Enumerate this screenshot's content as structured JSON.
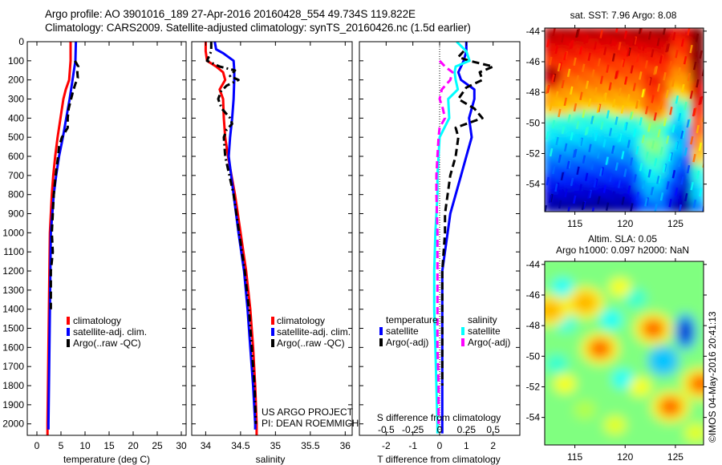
{
  "header": {
    "line1": "Argo profile: AO 3901016_189 27-Apr-2016 20160428_554 49.734S 119.822E",
    "line2": "Climatology: CARS2009. Satellite-adjusted climatology: synTS_20160426.nc (1.5d earlier)"
  },
  "colors": {
    "climatology": "#ff0000",
    "satellite": "#0000ff",
    "argo": "#000000",
    "salinity_satellite": "#00ffff",
    "salinity_argo": "#ff00ff"
  },
  "chart_data": [
    {
      "id": "temperature",
      "type": "line",
      "xlabel": "temperature (deg C)",
      "ylabel": "",
      "xlim": [
        -2,
        31
      ],
      "ylim": [
        2060,
        0
      ],
      "xticks": [
        0,
        5,
        10,
        15,
        20,
        25,
        30
      ],
      "yticks": [
        0,
        100,
        200,
        300,
        400,
        500,
        600,
        700,
        800,
        900,
        1000,
        1100,
        1200,
        1300,
        1400,
        1500,
        1600,
        1700,
        1800,
        1900,
        2000
      ],
      "legend": [
        "climatology",
        "satellite-adj. clim.",
        "Argo(..raw -QC)"
      ],
      "legend_placement": "center",
      "series": [
        {
          "name": "climatology",
          "color": "#ff0000",
          "style": "solid",
          "depth": [
            0,
            100,
            200,
            250,
            300,
            400,
            500,
            600,
            700,
            800,
            900,
            1000,
            1200,
            1400,
            1600,
            1800,
            2000,
            2060
          ],
          "values": [
            7.0,
            7.0,
            6.7,
            6.0,
            5.5,
            4.9,
            4.3,
            3.8,
            3.4,
            3.1,
            2.9,
            2.7,
            2.6,
            2.5,
            2.4,
            2.3,
            2.2,
            2.2
          ]
        },
        {
          "name": "satellite-adj. clim.",
          "color": "#0000ff",
          "style": "solid",
          "depth": [
            0,
            100,
            200,
            300,
            400,
            500,
            600,
            700,
            800,
            900,
            1000,
            1200,
            1400,
            1600,
            1800,
            2000,
            2030
          ],
          "values": [
            8.1,
            8.0,
            7.4,
            6.8,
            6.1,
            5.4,
            4.6,
            4.0,
            3.5,
            3.2,
            2.9,
            2.8,
            2.7,
            2.6,
            2.5,
            2.4,
            2.4
          ]
        },
        {
          "name": "Argo(..raw -QC)",
          "color": "#000000",
          "style": "dash",
          "depth": [
            100,
            130,
            160,
            190,
            220,
            260,
            300,
            350,
            400,
            450,
            500,
            550,
            600,
            700,
            800,
            900,
            1000,
            1100,
            1200,
            1300,
            1400
          ],
          "values": [
            7.9,
            8.6,
            8.4,
            8.5,
            8.0,
            7.5,
            7.1,
            6.6,
            6.4,
            6.4,
            5.2,
            4.6,
            4.4,
            3.9,
            3.5,
            3.3,
            3.1,
            3.3,
            2.9,
            2.9,
            2.9
          ]
        }
      ]
    },
    {
      "id": "salinity",
      "type": "line",
      "xlabel": "salinity",
      "ylabel": "",
      "xlim": [
        33.8,
        36.1
      ],
      "ylim": [
        2060,
        0
      ],
      "xticks": [
        34,
        34.5,
        35,
        35.5,
        36
      ],
      "xticklabels": [
        "34",
        "34.5",
        "35",
        "35.5",
        "36"
      ],
      "legend": [
        "climatology",
        "satellite-adj. clim.",
        "Argo(..raw -QC)"
      ],
      "legend_placement": "center-right",
      "annotation": [
        "US ARGO PROJECT",
        "PI: DEAN ROEMMICH"
      ],
      "series": [
        {
          "name": "climatology",
          "color": "#ff0000",
          "style": "solid",
          "depth": [
            0,
            50,
            100,
            130,
            160,
            200,
            250,
            300,
            400,
            500,
            600,
            800,
            1000,
            1200,
            1400,
            1600,
            1800,
            2000,
            2060
          ],
          "values": [
            34.0,
            34.0,
            34.02,
            34.15,
            34.25,
            34.28,
            34.2,
            34.25,
            34.26,
            34.28,
            34.32,
            34.42,
            34.5,
            34.58,
            34.64,
            34.68,
            34.71,
            34.73,
            34.73
          ]
        },
        {
          "name": "satellite-adj. clim.",
          "color": "#0000ff",
          "style": "solid",
          "depth": [
            0,
            40,
            60,
            100,
            150,
            200,
            300,
            400,
            500,
            600,
            800,
            1000,
            1200,
            1400,
            1600,
            1800,
            2000,
            2030
          ],
          "values": [
            34.13,
            34.15,
            34.25,
            34.4,
            34.41,
            34.41,
            34.4,
            34.38,
            34.35,
            34.33,
            34.4,
            34.47,
            34.55,
            34.6,
            34.64,
            34.68,
            34.71,
            34.71
          ]
        },
        {
          "name": "Argo(..raw -QC)",
          "color": "#000000",
          "style": "dashdot",
          "depth": [
            0,
            50,
            100,
            130,
            150,
            180,
            200,
            230,
            260,
            300,
            350,
            400,
            430,
            460,
            500,
            600,
            800,
            1000,
            1200,
            1400,
            1600,
            1800,
            2000
          ],
          "values": [
            34.08,
            34.08,
            34.02,
            34.2,
            34.42,
            34.35,
            34.47,
            34.3,
            34.22,
            34.18,
            34.23,
            34.35,
            34.38,
            34.3,
            34.26,
            34.28,
            34.4,
            34.48,
            34.56,
            34.62,
            34.66,
            34.7,
            34.72
          ]
        }
      ]
    },
    {
      "id": "difference",
      "type": "line",
      "xlabel": "T difference from climatology",
      "xlabel_secondary": "S difference from climatology",
      "xlim": [
        -3,
        3
      ],
      "xlim_secondary": [
        -0.75,
        0.75
      ],
      "ylim": [
        2060,
        0
      ],
      "xticks": [
        -2,
        -1,
        0,
        1,
        2
      ],
      "xticklabels_secondary": [
        "-0.5",
        "-0.25",
        "0",
        "0.25",
        "0.5"
      ],
      "zero_line": "dotted",
      "legend_groups": [
        {
          "title": "temperature",
          "items": [
            "satellite",
            "Argo(-adj)"
          ]
        },
        {
          "title": "salinity",
          "items": [
            "satellite",
            "Argo(-adj)"
          ]
        }
      ],
      "legend_placement": "bottom",
      "series": [
        {
          "name": "temperature satellite",
          "color": "#0000ff",
          "style": "solid",
          "depth": [
            0,
            50,
            100,
            130,
            160,
            200,
            250,
            300,
            400,
            500,
            600,
            700,
            800,
            900,
            1000,
            1200,
            1400,
            1600,
            1800,
            2000,
            2050
          ],
          "values": [
            1.0,
            1.0,
            0.9,
            0.8,
            0.7,
            0.8,
            1.3,
            1.3,
            1.1,
            1.2,
            1.0,
            0.8,
            0.6,
            0.4,
            0.3,
            0.1,
            0.1,
            0.1,
            0.1,
            0.1,
            0.1
          ]
        },
        {
          "name": "temperature Argo(-adj)",
          "color": "#000000",
          "style": "dash",
          "depth": [
            50,
            80,
            100,
            130,
            160,
            200,
            240,
            300,
            350,
            400,
            450,
            500,
            600,
            700,
            800,
            900,
            1000,
            1200,
            1400,
            1600,
            1800
          ],
          "values": [
            0.9,
            0.7,
            1.1,
            2.0,
            1.5,
            1.6,
            1.0,
            0.7,
            1.3,
            1.6,
            0.6,
            0.7,
            0.6,
            0.4,
            0.3,
            0.2,
            0.2,
            0.1,
            0.1,
            0.1,
            0.1
          ]
        },
        {
          "name": "salinity satellite",
          "color": "#00ffff",
          "style": "solid",
          "depth": [
            0,
            50,
            100,
            130,
            160,
            200,
            250,
            300,
            400,
            500,
            600,
            700,
            800,
            900,
            1000,
            1200,
            1400,
            1600,
            1800,
            2000,
            2050
          ],
          "values": [
            0.16,
            0.25,
            0.28,
            0.15,
            0.14,
            0.15,
            0.17,
            0.08,
            0.09,
            0.0,
            -0.01,
            -0.02,
            -0.02,
            -0.03,
            -0.04,
            -0.05,
            -0.05,
            -0.04,
            -0.03,
            -0.02,
            -0.02
          ]
        },
        {
          "name": "salinity Argo(-adj)",
          "color": "#ff00ff",
          "style": "dash",
          "depth": [
            100,
            130,
            160,
            200,
            250,
            300,
            350,
            400,
            450,
            500,
            600,
            700,
            800,
            1000,
            1200,
            1400,
            1600,
            1800,
            2000
          ],
          "values": [
            0.0,
            0.05,
            0.12,
            0.1,
            0.02,
            0.0,
            0.03,
            0.05,
            0.0,
            -0.01,
            -0.02,
            -0.03,
            -0.03,
            -0.02,
            -0.02,
            -0.02,
            -0.02,
            -0.01,
            -0.01
          ]
        }
      ]
    },
    {
      "id": "sst-map",
      "type": "heatmap",
      "title": "sat. SST: 7.96 Argo: 8.08",
      "xlim": [
        112,
        127.8
      ],
      "ylim": [
        -55.8,
        -43.8
      ],
      "xticks": [
        115,
        120,
        125
      ],
      "yticks": [
        -44,
        -46,
        -48,
        -50,
        -52,
        -54
      ],
      "colormap": "jet",
      "description": "warm (red/orange) in north, yellow/green band around -48 to -50, cool blue in south"
    },
    {
      "id": "sla-map",
      "type": "heatmap",
      "title": "Altim. SLA: 0.05",
      "subtitle": "Argo h1000: 0.097 h2000: NaN",
      "xlim": [
        112,
        127.8
      ],
      "ylim": [
        -55.8,
        -43.8
      ],
      "xticks": [
        115,
        120,
        125
      ],
      "yticks": [
        -44,
        -46,
        -48,
        -50,
        -52,
        -54
      ],
      "colormap": "jet",
      "features": [
        {
          "kind": "low",
          "lon": 126,
          "lat": -48.4,
          "color": "dark-blue"
        },
        {
          "kind": "low",
          "lon": 123.8,
          "lat": -50.3,
          "color": "cyan"
        },
        {
          "kind": "high",
          "lon": 117.5,
          "lat": -49.5,
          "color": "orange"
        },
        {
          "kind": "high",
          "lon": 122.8,
          "lat": -48.2,
          "color": "orange"
        },
        {
          "kind": "high",
          "lon": 124.5,
          "lat": -53.3,
          "color": "orange"
        },
        {
          "kind": "high",
          "lon": 127.5,
          "lat": -51.8,
          "color": "orange"
        },
        {
          "kind": "high",
          "lon": 116,
          "lat": -46.5,
          "color": "yellow-orange"
        },
        {
          "kind": "high",
          "lon": 112.5,
          "lat": -47,
          "color": "yellow-orange"
        }
      ]
    }
  ],
  "footer": {
    "credit": "©IMOS 04-May-2016 20:41:13"
  }
}
